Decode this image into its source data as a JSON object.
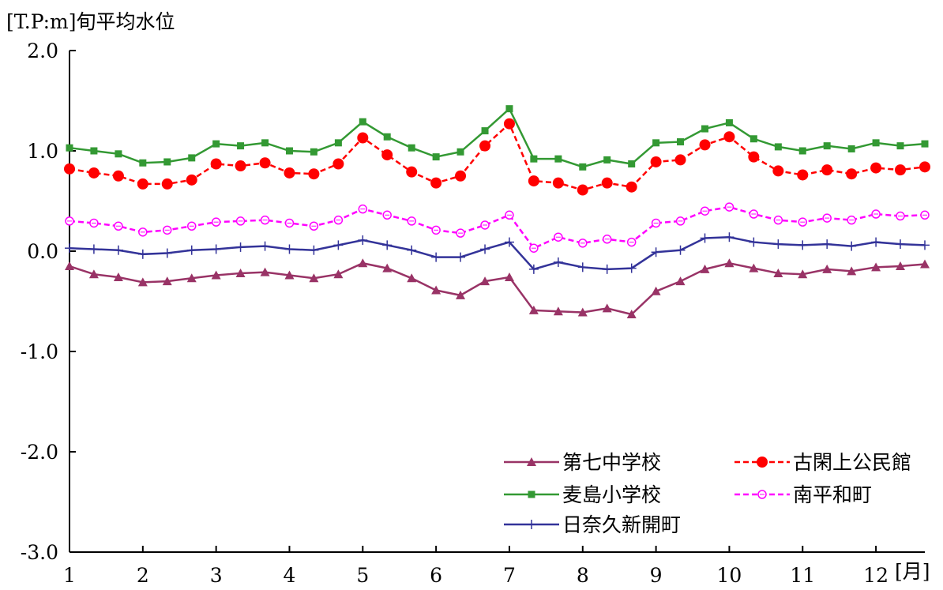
{
  "chart_data": {
    "type": "line",
    "ylabel": "[T.P:m]旬平均水位",
    "xlabel": "[月]",
    "xlim": [
      1,
      12.667
    ],
    "ylim": [
      -3.0,
      2.0
    ],
    "yticks": [
      2.0,
      1.0,
      0.0,
      -1.0,
      -2.0,
      -3.0
    ],
    "ytick_labels": [
      "2.0",
      "1.0",
      "0.0",
      "-1.0",
      "-2.0",
      "-3.0"
    ],
    "xticks": [
      1,
      2,
      3,
      4,
      5,
      6,
      7,
      8,
      9,
      10,
      11,
      12
    ],
    "xtick_labels": [
      "1",
      "2",
      "3",
      "4",
      "5",
      "6",
      "7",
      "8",
      "9",
      "10",
      "11",
      "12"
    ],
    "grid": false,
    "legend_position": "bottom-right",
    "x": [
      1.0,
      1.333,
      1.667,
      2.0,
      2.333,
      2.667,
      3.0,
      3.333,
      3.667,
      4.0,
      4.333,
      4.667,
      5.0,
      5.333,
      5.667,
      6.0,
      6.333,
      6.667,
      7.0,
      7.333,
      7.667,
      8.0,
      8.333,
      8.667,
      9.0,
      9.333,
      9.667,
      10.0,
      10.333,
      10.667,
      11.0,
      11.333,
      11.667,
      12.0,
      12.333,
      12.667
    ],
    "series": [
      {
        "name": "第七中学校",
        "color": "#993366",
        "line_style": "solid",
        "marker": "triangle",
        "values": [
          -0.15,
          -0.23,
          -0.26,
          -0.31,
          -0.3,
          -0.27,
          -0.24,
          -0.22,
          -0.21,
          -0.24,
          -0.27,
          -0.23,
          -0.12,
          -0.17,
          -0.27,
          -0.39,
          -0.44,
          -0.3,
          -0.26,
          -0.59,
          -0.6,
          -0.61,
          -0.57,
          -0.63,
          -0.4,
          -0.3,
          -0.18,
          -0.12,
          -0.17,
          -0.22,
          -0.23,
          -0.18,
          -0.2,
          -0.16,
          -0.15,
          -0.13
        ]
      },
      {
        "name": "古閑上公民館",
        "color": "#ff0000",
        "line_style": "dashed",
        "marker": "filled-circle",
        "values": [
          0.82,
          0.78,
          0.75,
          0.67,
          0.67,
          0.71,
          0.87,
          0.85,
          0.88,
          0.78,
          0.77,
          0.87,
          1.13,
          0.96,
          0.79,
          0.68,
          0.75,
          1.05,
          1.27,
          0.7,
          0.68,
          0.61,
          0.68,
          0.64,
          0.89,
          0.91,
          1.06,
          1.14,
          0.94,
          0.8,
          0.76,
          0.81,
          0.77,
          0.83,
          0.81,
          0.84
        ]
      },
      {
        "name": "麦島小学校",
        "color": "#339933",
        "line_style": "solid",
        "marker": "filled-square",
        "values": [
          1.03,
          1.0,
          0.97,
          0.88,
          0.89,
          0.93,
          1.07,
          1.05,
          1.08,
          1.0,
          0.99,
          1.08,
          1.29,
          1.14,
          1.03,
          0.94,
          0.99,
          1.2,
          1.42,
          0.92,
          0.92,
          0.84,
          0.91,
          0.87,
          1.08,
          1.09,
          1.22,
          1.28,
          1.12,
          1.04,
          1.0,
          1.05,
          1.02,
          1.08,
          1.05,
          1.07
        ]
      },
      {
        "name": "南平和町",
        "color": "#ff00ff",
        "line_style": "dashed",
        "marker": "open-circle",
        "values": [
          0.3,
          0.28,
          0.25,
          0.19,
          0.21,
          0.25,
          0.29,
          0.3,
          0.31,
          0.28,
          0.25,
          0.31,
          0.42,
          0.36,
          0.3,
          0.21,
          0.18,
          0.26,
          0.36,
          0.03,
          0.14,
          0.08,
          0.12,
          0.09,
          0.28,
          0.3,
          0.4,
          0.44,
          0.37,
          0.31,
          0.29,
          0.33,
          0.31,
          0.37,
          0.35,
          0.36
        ]
      },
      {
        "name": "日奈久新開町",
        "color": "#333399",
        "line_style": "solid",
        "marker": "plus",
        "values": [
          0.03,
          0.02,
          0.01,
          -0.03,
          -0.02,
          0.01,
          0.02,
          0.04,
          0.05,
          0.02,
          0.01,
          0.06,
          0.11,
          0.06,
          0.01,
          -0.06,
          -0.06,
          0.02,
          0.09,
          -0.18,
          -0.11,
          -0.16,
          -0.18,
          -0.17,
          -0.01,
          0.01,
          0.13,
          0.14,
          0.09,
          0.07,
          0.06,
          0.07,
          0.05,
          0.09,
          0.07,
          0.06
        ]
      }
    ]
  }
}
